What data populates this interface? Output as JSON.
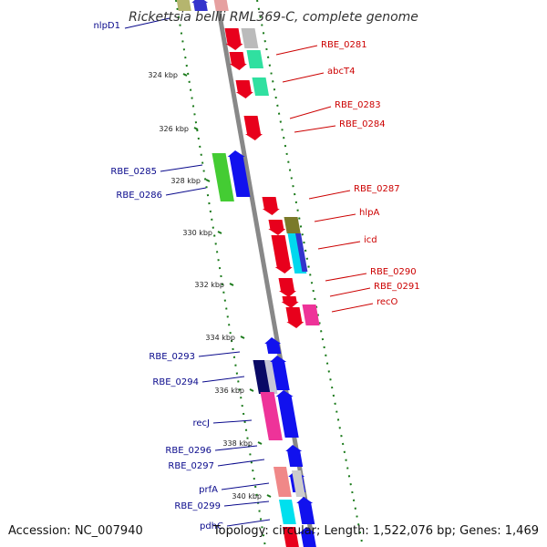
{
  "title": "Rickettsia bellii RML369-C, complete genome",
  "footer": {
    "accession": "Accession: NC_007940",
    "stats": "Topology: circular; Length: 1,522,076 bp; Genes: 1,469"
  },
  "colors": {
    "reverse_label": "#0a0a8c",
    "forward_label": "#cc0000",
    "backbone": "#888888",
    "tick": "#1a7a1a"
  },
  "ticks": [
    {
      "label": "324 kbp"
    },
    {
      "label": "326 kbp"
    },
    {
      "label": "328 kbp"
    },
    {
      "label": "330 kbp"
    },
    {
      "label": "332 kbp"
    },
    {
      "label": "334 kbp"
    },
    {
      "label": "336 kbp"
    },
    {
      "label": "338 kbp"
    },
    {
      "label": "340 kbp"
    }
  ],
  "reverse_genes": [
    {
      "name": "nlpD1"
    },
    {
      "name": "RBE_0285"
    },
    {
      "name": "RBE_0286"
    },
    {
      "name": "RBE_0293"
    },
    {
      "name": "RBE_0294"
    },
    {
      "name": "recJ"
    },
    {
      "name": "RBE_0296"
    },
    {
      "name": "RBE_0297"
    },
    {
      "name": "prfA"
    },
    {
      "name": "RBE_0299"
    },
    {
      "name": "pdhC"
    }
  ],
  "forward_genes": [
    {
      "name": "RBE_0281"
    },
    {
      "name": "abcT4"
    },
    {
      "name": "RBE_0283"
    },
    {
      "name": "RBE_0284"
    },
    {
      "name": "RBE_0287"
    },
    {
      "name": "hlpA"
    },
    {
      "name": "icd"
    },
    {
      "name": "RBE_0290"
    },
    {
      "name": "RBE_0291"
    },
    {
      "name": "recO"
    }
  ]
}
